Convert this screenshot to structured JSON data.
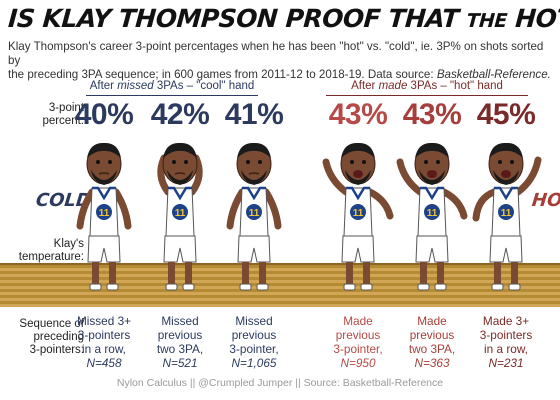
{
  "title": {
    "part1": "IS KLAY THOMPSON PROOF THAT",
    "part2": "THE",
    "part3": "HOT HAND EXISTS?"
  },
  "subtitle": {
    "line1": "Klay Thompson's career 3-point percentages when  he has been \"hot\" vs. \"cold\", ie. 3P% on shots sorted by",
    "line2a": "the  preceding 3PA sequence; in 600 games from 2011-12 to 2018-19. Data source: ",
    "line2b": "Basketball-Reference."
  },
  "groups": {
    "cold": {
      "pre": "After ",
      "emph": "missed",
      "post": " 3PAs – \"cool\" hand"
    },
    "hot": {
      "pre": "After ",
      "emph": "made",
      "post": " 3PAs – \"hot\" hand"
    }
  },
  "row_labels": {
    "percent_a": "3-point",
    "percent_b": "percent:",
    "temp_a": "Klay's",
    "temp_b": "temperature:",
    "seq_a": "Sequence of",
    "seq_b": "preceding",
    "seq_c": "3-pointers:"
  },
  "tags": {
    "cold": "COLD",
    "hot": "HOT"
  },
  "colors": {
    "cold": "#2b3a5e",
    "hot_1": "#b54a46",
    "hot_2": "#a63f3b",
    "hot_3": "#7a2a28",
    "jersey": "#ffffff",
    "jersey_trim": "#1d428a",
    "court": "#c89a45"
  },
  "scenarios": [
    {
      "pct": "40%",
      "l1": "Missed 3+",
      "l2": "3-pointers",
      "l3": "in a row,",
      "n": "N=458"
    },
    {
      "pct": "42%",
      "l1": "Missed",
      "l2": "previous",
      "l3": "two  3PA,",
      "n": "N=521"
    },
    {
      "pct": "41%",
      "l1": "Missed",
      "l2": "previous",
      "l3": "3-pointer,",
      "n": "N=1,065"
    },
    {
      "pct": "43%",
      "l1": "Made",
      "l2": "previous",
      "l3": "3-pointer,",
      "n": "N=950"
    },
    {
      "pct": "43%",
      "l1": "Made",
      "l2": "previous",
      "l3": "two 3PA,",
      "n": "N=363"
    },
    {
      "pct": "45%",
      "l1": "Made 3+",
      "l2": "3-pointers",
      "l3": "in a row,",
      "n": "N=231"
    }
  ],
  "jersey_number": "11",
  "footer": "Nylon Calculus || @Crumpled Jumper || Source: Basketball-Reference"
}
